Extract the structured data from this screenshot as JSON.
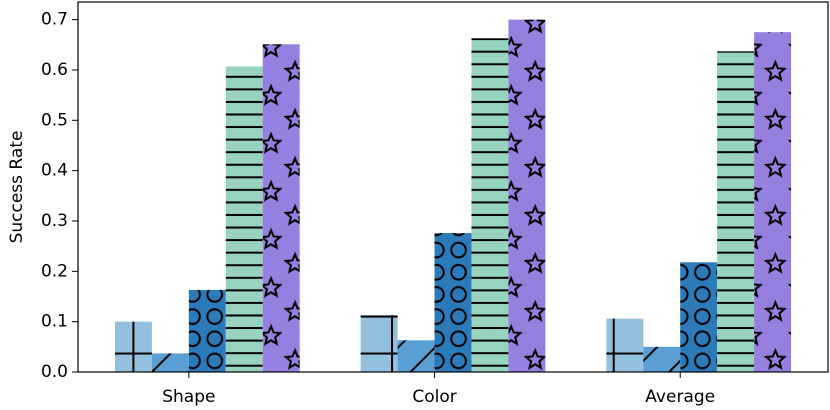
{
  "chart_data": {
    "type": "bar",
    "y_label": "Success Rate",
    "categories": [
      "Shape",
      "Color",
      "Average"
    ],
    "series": [
      {
        "color": "#93c0df",
        "hatch": "+",
        "values": [
          0.1,
          0.113,
          0.106
        ]
      },
      {
        "color": "#5a9fd3",
        "hatch": "/",
        "values": [
          0.037,
          0.063,
          0.05
        ]
      },
      {
        "color": "#2b7bba",
        "hatch": "o",
        "values": [
          0.163,
          0.276,
          0.218
        ]
      },
      {
        "color": "#98d3bf",
        "hatch": "-",
        "values": [
          0.607,
          0.663,
          0.637
        ]
      },
      {
        "color": "#9580e0",
        "hatch": "*",
        "values": [
          0.651,
          0.7,
          0.675
        ]
      }
    ],
    "ylim": [
      0,
      0.735
    ],
    "yticks": [
      {
        "value": 0,
        "label": "0.0"
      },
      0.1,
      0.2,
      0.3,
      0.4,
      0.5,
      0.6,
      0.7
    ],
    "grid": false
  }
}
